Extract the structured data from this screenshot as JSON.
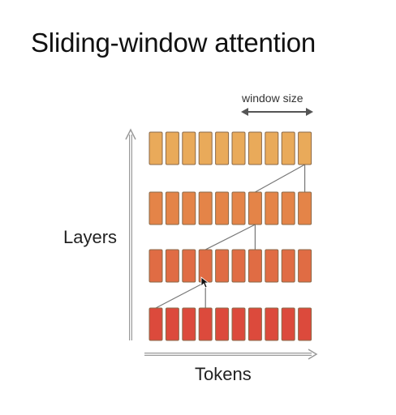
{
  "slide": {
    "title": "Sliding-window attention",
    "layers_label": "Layers",
    "tokens_label": "Tokens",
    "window_label": "window size"
  },
  "diagram": {
    "tokens_per_layer": 10,
    "num_layers": 4,
    "window_size": 3,
    "layer_colors": [
      "#e9aa5a",
      "#e48448",
      "#e06c44",
      "#dc4a3c"
    ],
    "box_stroke": "#8a6a4a",
    "connection_color": "#777777",
    "connections": [
      {
        "from_layer": 0,
        "from_token": 9,
        "to_layer": 1,
        "to_tokens": [
          6,
          9
        ]
      },
      {
        "from_layer": 1,
        "from_token": 6,
        "to_layer": 2,
        "to_tokens": [
          3,
          6
        ]
      },
      {
        "from_layer": 2,
        "from_token": 3,
        "to_layer": 3,
        "to_tokens": [
          0,
          3
        ]
      }
    ]
  },
  "cursor": {
    "name": "mouse-pointer"
  }
}
